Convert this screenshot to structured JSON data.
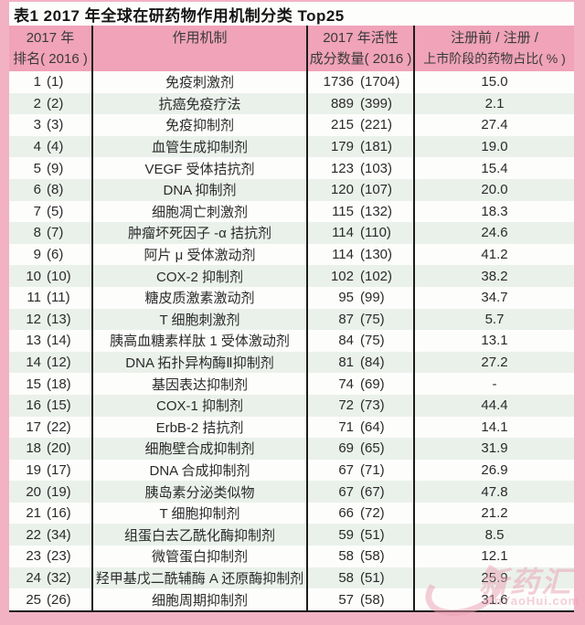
{
  "page": {
    "title": "表1   2017 年全球在研药物作用机制分类 Top25"
  },
  "colors": {
    "outer_border_pink": "#f2b2c4",
    "header_pink": "#f0a3b9",
    "row_alt_green": "#eaf1eb",
    "row_white": "#fdfdfc",
    "table_line_black": "#1c1c1c",
    "watermark_pink": "#eba0b4"
  },
  "table": {
    "headers": {
      "col1_line1": "2017 年",
      "col1_line2": "排名( 2016 )",
      "col2_line1": "作用机制",
      "col3_line1": "2017 年活性",
      "col3_line2": "成分数量( 2016 )",
      "col4_line1": "注册前 / 注册 /",
      "col4_line2": "上市阶段的药物占比( % )"
    },
    "rows": [
      {
        "rank": "1",
        "rank_prev": "(1)",
        "mechanism": "免疫刺激剂",
        "count": "1736",
        "count_prev": "(1704)",
        "pct": "15.0"
      },
      {
        "rank": "2",
        "rank_prev": "(2)",
        "mechanism": "抗癌免疫疗法",
        "count": "889",
        "count_prev": "(399)",
        "pct": "2.1"
      },
      {
        "rank": "3",
        "rank_prev": "(3)",
        "mechanism": "免疫抑制剂",
        "count": "215",
        "count_prev": "(221)",
        "pct": "27.4"
      },
      {
        "rank": "4",
        "rank_prev": "(4)",
        "mechanism": "血管生成抑制剂",
        "count": "179",
        "count_prev": "(181)",
        "pct": "19.0"
      },
      {
        "rank": "5",
        "rank_prev": "(9)",
        "mechanism": "VEGF 受体拮抗剂",
        "count": "123",
        "count_prev": "(103)",
        "pct": "15.4"
      },
      {
        "rank": "6",
        "rank_prev": "(8)",
        "mechanism": "DNA 抑制剂",
        "count": "120",
        "count_prev": "(107)",
        "pct": "20.0"
      },
      {
        "rank": "7",
        "rank_prev": "(5)",
        "mechanism": "细胞凋亡刺激剂",
        "count": "115",
        "count_prev": "(132)",
        "pct": "18.3"
      },
      {
        "rank": "8",
        "rank_prev": "(7)",
        "mechanism": "肿瘤坏死因子 -α 拮抗剂",
        "count": "114",
        "count_prev": "(110)",
        "pct": "24.6"
      },
      {
        "rank": "9",
        "rank_prev": "(6)",
        "mechanism": "阿片 μ 受体激动剂",
        "count": "114",
        "count_prev": "(130)",
        "pct": "41.2"
      },
      {
        "rank": "10",
        "rank_prev": "(10)",
        "mechanism": "COX-2 抑制剂",
        "count": "102",
        "count_prev": "(102)",
        "pct": "38.2"
      },
      {
        "rank": "11",
        "rank_prev": "(11)",
        "mechanism": "糖皮质激素激动剂",
        "count": "95",
        "count_prev": "(99)",
        "pct": "34.7"
      },
      {
        "rank": "12",
        "rank_prev": "(13)",
        "mechanism": "T 细胞刺激剂",
        "count": "87",
        "count_prev": "(75)",
        "pct": "5.7"
      },
      {
        "rank": "13",
        "rank_prev": "(14)",
        "mechanism": "胰高血糖素样肽 1 受体激动剂",
        "count": "84",
        "count_prev": "(75)",
        "pct": "13.1"
      },
      {
        "rank": "14",
        "rank_prev": "(12)",
        "mechanism": "DNA 拓扑异构酶Ⅱ抑制剂",
        "count": "81",
        "count_prev": "(84)",
        "pct": "27.2"
      },
      {
        "rank": "15",
        "rank_prev": "(18)",
        "mechanism": "基因表达抑制剂",
        "count": "74",
        "count_prev": "(69)",
        "pct": "-"
      },
      {
        "rank": "16",
        "rank_prev": "(15)",
        "mechanism": "COX-1 抑制剂",
        "count": "72",
        "count_prev": "(73)",
        "pct": "44.4"
      },
      {
        "rank": "17",
        "rank_prev": "(22)",
        "mechanism": "ErbB-2 拮抗剂",
        "count": "71",
        "count_prev": "(64)",
        "pct": "14.1"
      },
      {
        "rank": "18",
        "rank_prev": "(20)",
        "mechanism": "细胞壁合成抑制剂",
        "count": "69",
        "count_prev": "(65)",
        "pct": "31.9"
      },
      {
        "rank": "19",
        "rank_prev": "(17)",
        "mechanism": "DNA 合成抑制剂",
        "count": "67",
        "count_prev": "(71)",
        "pct": "26.9"
      },
      {
        "rank": "20",
        "rank_prev": "(19)",
        "mechanism": "胰岛素分泌类似物",
        "count": "67",
        "count_prev": "(67)",
        "pct": "47.8"
      },
      {
        "rank": "21",
        "rank_prev": "(16)",
        "mechanism": "T 细胞抑制剂",
        "count": "66",
        "count_prev": "(72)",
        "pct": "21.2"
      },
      {
        "rank": "22",
        "rank_prev": "(34)",
        "mechanism": "组蛋白去乙酰化酶抑制剂",
        "count": "59",
        "count_prev": "(51)",
        "pct": "8.5"
      },
      {
        "rank": "23",
        "rank_prev": "(23)",
        "mechanism": "微管蛋白抑制剂",
        "count": "58",
        "count_prev": "(58)",
        "pct": "12.1"
      },
      {
        "rank": "24",
        "rank_prev": "(32)",
        "mechanism": "羟甲基戊二酰辅酶 A 还原酶抑制剂",
        "count": "58",
        "count_prev": "(51)",
        "pct": "25.9"
      },
      {
        "rank": "25",
        "rank_prev": "(26)",
        "mechanism": "细胞周期抑制剂",
        "count": "57",
        "count_prev": "(58)",
        "pct": "31.6"
      }
    ]
  },
  "watermark": {
    "brand": "新药汇",
    "domain": "xinYaoHui.com"
  }
}
